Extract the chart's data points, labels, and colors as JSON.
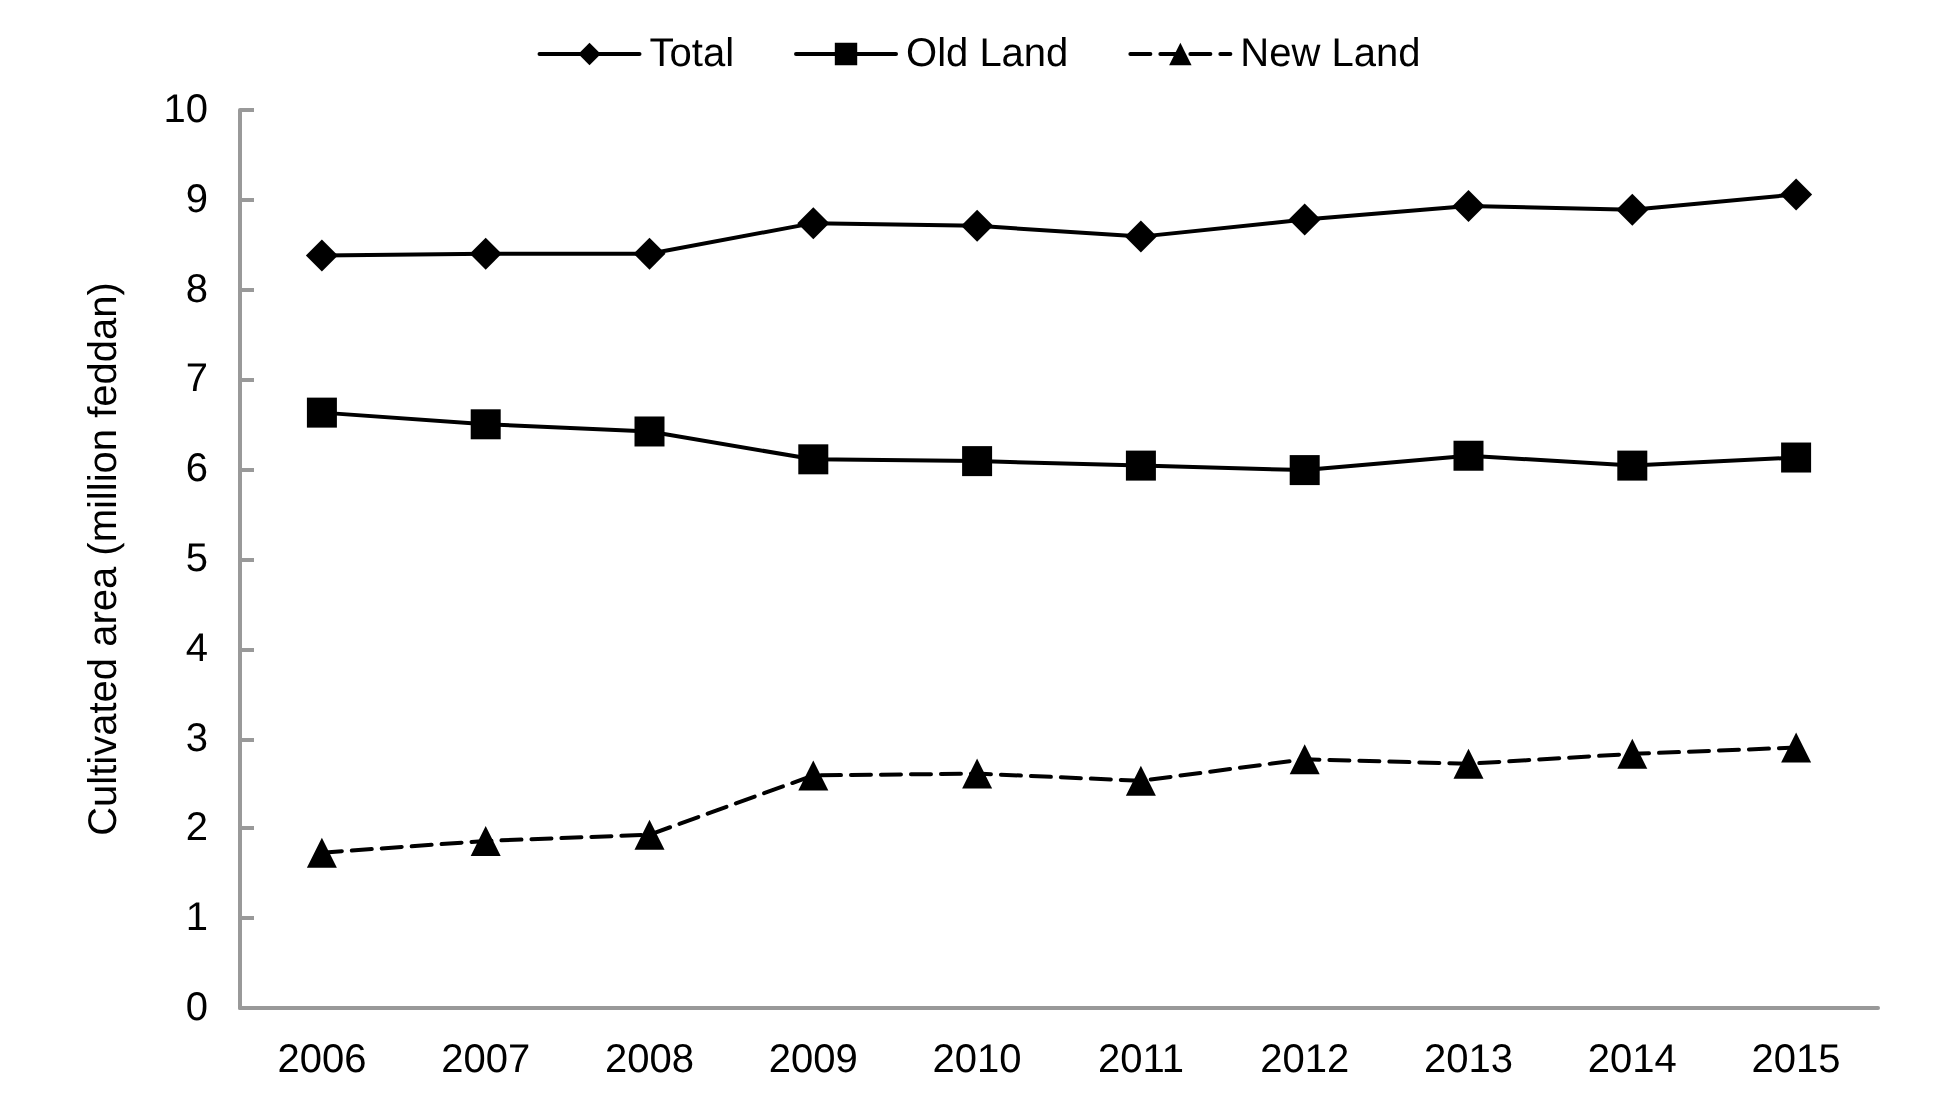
{
  "chart_data": {
    "type": "line",
    "ylabel": "Cultivated area (million feddan)",
    "categories": [
      "2006",
      "2007",
      "2008",
      "2009",
      "2010",
      "2011",
      "2012",
      "2013",
      "2014",
      "2015"
    ],
    "series": [
      {
        "name": "Total",
        "color": "#000000",
        "marker": "diamond",
        "line_style": "solid",
        "values": [
          8.38,
          8.4,
          8.4,
          8.74,
          8.71,
          8.59,
          8.78,
          8.93,
          8.89,
          9.06
        ]
      },
      {
        "name": "Old Land",
        "color": "#000000",
        "marker": "square",
        "line_style": "solid",
        "values": [
          6.63,
          6.5,
          6.42,
          6.11,
          6.09,
          6.04,
          5.99,
          6.15,
          6.04,
          6.13
        ]
      },
      {
        "name": "New Land",
        "color": "#000000",
        "marker": "triangle",
        "line_style": "dashed",
        "values": [
          1.73,
          1.86,
          1.93,
          2.59,
          2.61,
          2.53,
          2.77,
          2.72,
          2.83,
          2.9
        ]
      }
    ],
    "ylim": [
      0,
      10
    ],
    "yticks": [
      0,
      1,
      2,
      3,
      4,
      5,
      6,
      7,
      8,
      9,
      10
    ],
    "grid": false,
    "legend": "top"
  }
}
